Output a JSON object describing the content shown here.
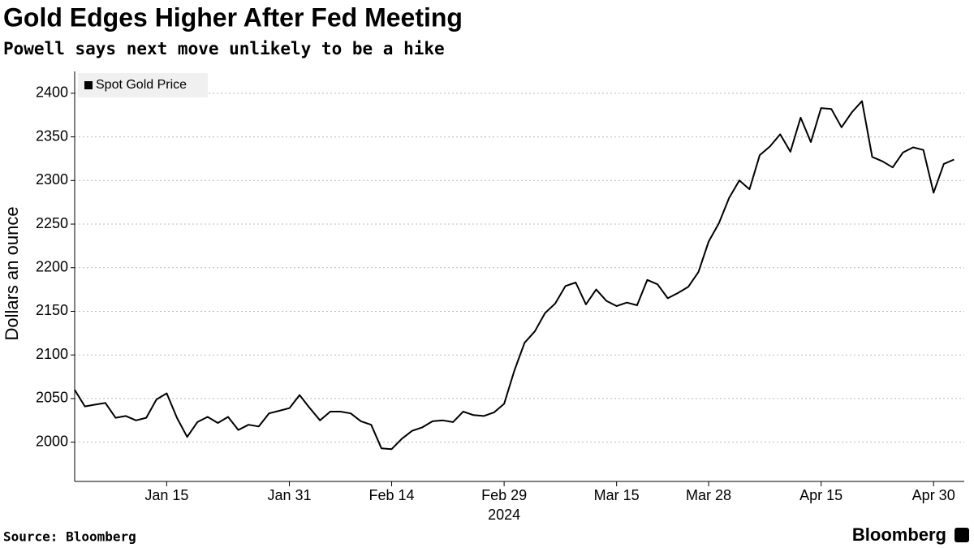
{
  "chart_data": {
    "type": "line",
    "title": "Gold Edges Higher After Fed Meeting",
    "subtitle": "Powell says next move unlikely to be a hike",
    "ylabel": "Dollars an ounce",
    "xlabel": "2024",
    "source": "Source: Bloomberg",
    "brand": "Bloomberg",
    "x": [
      "2024-01-02",
      "2024-01-03",
      "2024-01-04",
      "2024-01-05",
      "2024-01-08",
      "2024-01-09",
      "2024-01-10",
      "2024-01-11",
      "2024-01-12",
      "2024-01-15",
      "2024-01-16",
      "2024-01-17",
      "2024-01-18",
      "2024-01-19",
      "2024-01-22",
      "2024-01-23",
      "2024-01-24",
      "2024-01-25",
      "2024-01-26",
      "2024-01-29",
      "2024-01-30",
      "2024-01-31",
      "2024-02-01",
      "2024-02-02",
      "2024-02-05",
      "2024-02-06",
      "2024-02-07",
      "2024-02-08",
      "2024-02-09",
      "2024-02-12",
      "2024-02-13",
      "2024-02-14",
      "2024-02-15",
      "2024-02-16",
      "2024-02-19",
      "2024-02-20",
      "2024-02-21",
      "2024-02-22",
      "2024-02-23",
      "2024-02-26",
      "2024-02-27",
      "2024-02-28",
      "2024-02-29",
      "2024-03-01",
      "2024-03-04",
      "2024-03-05",
      "2024-03-06",
      "2024-03-07",
      "2024-03-08",
      "2024-03-11",
      "2024-03-12",
      "2024-03-13",
      "2024-03-14",
      "2024-03-15",
      "2024-03-18",
      "2024-03-19",
      "2024-03-20",
      "2024-03-21",
      "2024-03-22",
      "2024-03-25",
      "2024-03-26",
      "2024-03-27",
      "2024-03-28",
      "2024-04-01",
      "2024-04-02",
      "2024-04-03",
      "2024-04-04",
      "2024-04-05",
      "2024-04-08",
      "2024-04-09",
      "2024-04-10",
      "2024-04-11",
      "2024-04-12",
      "2024-04-15",
      "2024-04-16",
      "2024-04-17",
      "2024-04-18",
      "2024-04-19",
      "2024-04-22",
      "2024-04-23",
      "2024-04-24",
      "2024-04-25",
      "2024-04-26",
      "2024-04-29",
      "2024-04-30",
      "2024-05-01",
      "2024-05-02"
    ],
    "series": [
      {
        "name": "Spot Gold Price",
        "color": "#000000",
        "values": [
          2060,
          2041,
          2043,
          2045,
          2028,
          2030,
          2025,
          2028,
          2049,
          2056,
          2028,
          2006,
          2023,
          2029,
          2022,
          2029,
          2014,
          2020,
          2018,
          2033,
          2036,
          2039,
          2054,
          2039,
          2025,
          2035,
          2035,
          2033,
          2024,
          2020,
          1993,
          1992,
          2004,
          2013,
          2017,
          2024,
          2025,
          2023,
          2035,
          2031,
          2030,
          2034,
          2044,
          2082,
          2114,
          2127,
          2148,
          2159,
          2179,
          2183,
          2158,
          2175,
          2162,
          2156,
          2160,
          2157,
          2186,
          2181,
          2165,
          2171,
          2178,
          2195,
          2230,
          2251,
          2280,
          2300,
          2290,
          2329,
          2339,
          2353,
          2333,
          2372,
          2344,
          2383,
          2382,
          2361,
          2378,
          2391,
          2327,
          2322,
          2315,
          2332,
          2338,
          2335,
          2286,
          2319,
          2324
        ]
      }
    ],
    "xticks": [
      {
        "value": "2024-01-15",
        "label": "Jan 15"
      },
      {
        "value": "2024-01-31",
        "label": "Jan 31"
      },
      {
        "value": "2024-02-14",
        "label": "Feb 14"
      },
      {
        "value": "2024-02-29",
        "label": "Feb 29"
      },
      {
        "value": "2024-03-15",
        "label": "Mar 15"
      },
      {
        "value": "2024-03-28",
        "label": "Mar 28"
      },
      {
        "value": "2024-04-15",
        "label": "Apr 15"
      },
      {
        "value": "2024-04-30",
        "label": "Apr 30"
      }
    ],
    "ylim": [
      1955,
      2425
    ],
    "yticks": [
      2000,
      2050,
      2100,
      2150,
      2200,
      2250,
      2300,
      2350,
      2400
    ],
    "grid": true,
    "legend": "top-left"
  }
}
